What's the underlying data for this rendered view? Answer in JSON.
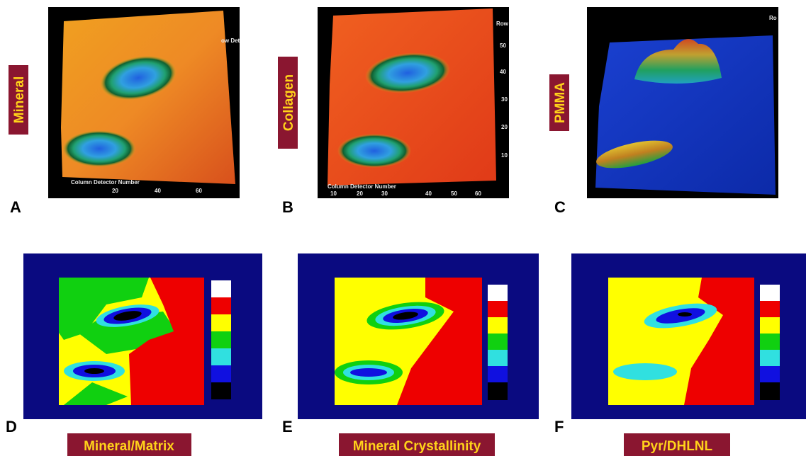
{
  "panels": [
    {
      "letter": "A",
      "label": "Mineral",
      "axis_title": "Column Detector Number",
      "axis_ticks": [
        "20",
        "40",
        "60"
      ],
      "corner_text": "ow Det"
    },
    {
      "letter": "B",
      "label": "Collagen",
      "axis_title": "Column Detector Number",
      "axis_ticks": [
        "10",
        "20",
        "30",
        "40",
        "50",
        "60"
      ],
      "side_ticks": [
        "Row",
        "50",
        "40",
        "30",
        "20",
        "10"
      ]
    },
    {
      "letter": "C",
      "label": "PMMA",
      "corner_text": "Ro"
    },
    {
      "letter": "D",
      "caption": "Mineral/Matrix"
    },
    {
      "letter": "E",
      "caption": "Mineral Crystallinity"
    },
    {
      "letter": "F",
      "caption": "Pyr/DHLNL"
    }
  ]
}
